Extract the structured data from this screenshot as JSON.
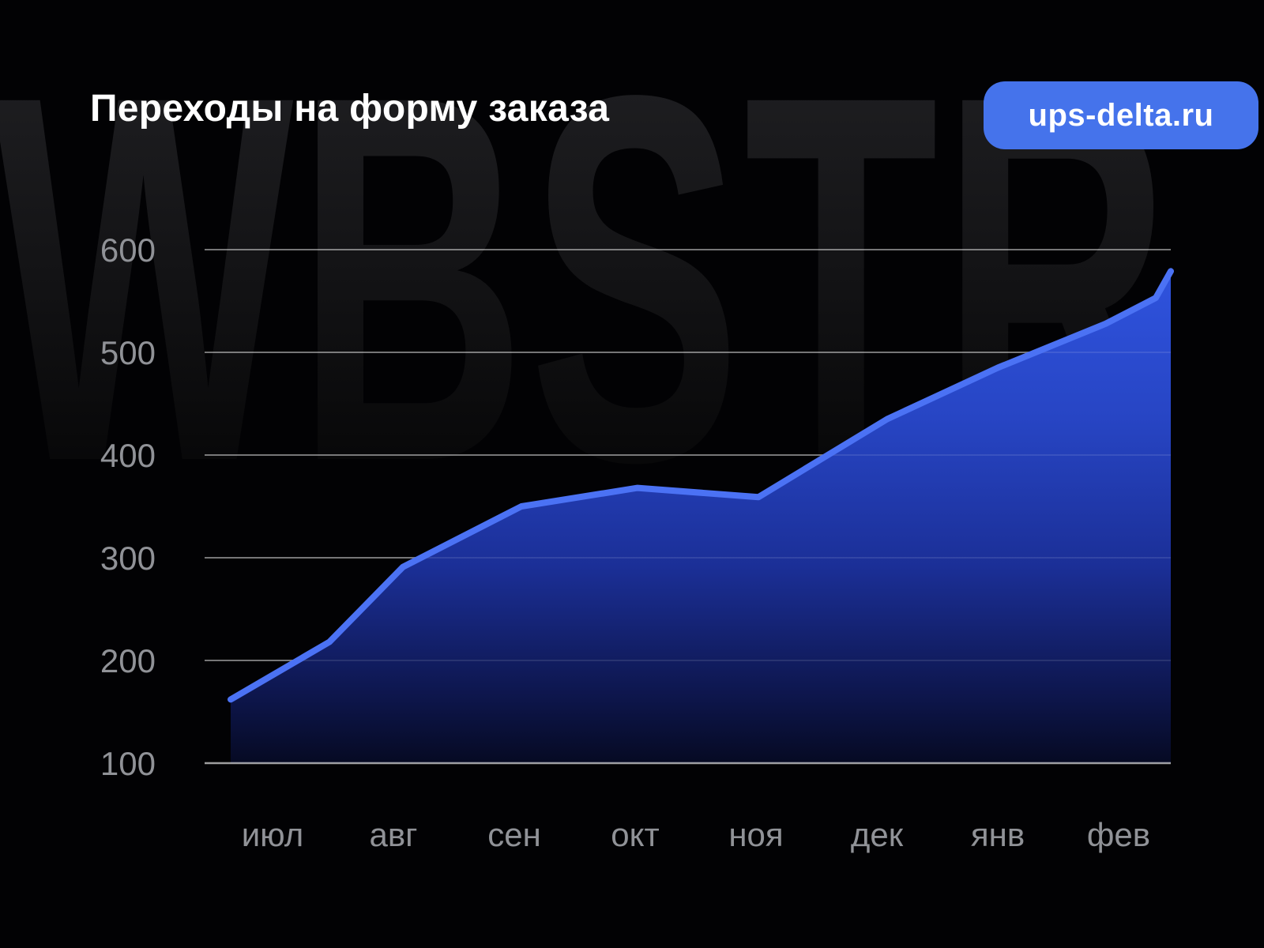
{
  "page": {
    "watermark": "WBSTR"
  },
  "header": {
    "title": "Переходы на форму заказа",
    "badge_label": "ups-delta.ru"
  },
  "colors": {
    "accent_blue": "#4573EB",
    "line_blue": "#4B72F4",
    "axis_label_gray": "#909297",
    "area_gradient_top": "#2F53DE",
    "area_gradient_upper_mid": "#2745C4",
    "area_gradient_lower_mid": "#1B2F97",
    "area_gradient_deep": "#0E1750",
    "area_gradient_bottom": "#060A23",
    "watermark_top": "#1E1E21",
    "watermark_bottom": "#070708"
  },
  "chart_data": {
    "type": "area",
    "title": "Переходы на форму заказа",
    "categories": [
      "июл",
      "авг",
      "сен",
      "окт",
      "ноя",
      "дек",
      "янв",
      "фев"
    ],
    "values": [
      165,
      285,
      350,
      368,
      358,
      432,
      485,
      528
    ],
    "end_spike_value": 579,
    "ylim": [
      100,
      600
    ],
    "yticks": [
      100,
      200,
      300,
      400,
      500,
      600
    ],
    "xlabel": "",
    "ylabel": "",
    "grid": "horizontal",
    "legend": "none",
    "polyline": [
      [
        292,
        162
      ],
      [
        417,
        218
      ],
      [
        510,
        291
      ],
      [
        660,
        350
      ],
      [
        807,
        368
      ],
      [
        960,
        359
      ],
      [
        1123,
        435
      ],
      [
        1263,
        485
      ],
      [
        1400,
        528
      ],
      [
        1463,
        553
      ],
      [
        1482,
        579
      ]
    ]
  }
}
